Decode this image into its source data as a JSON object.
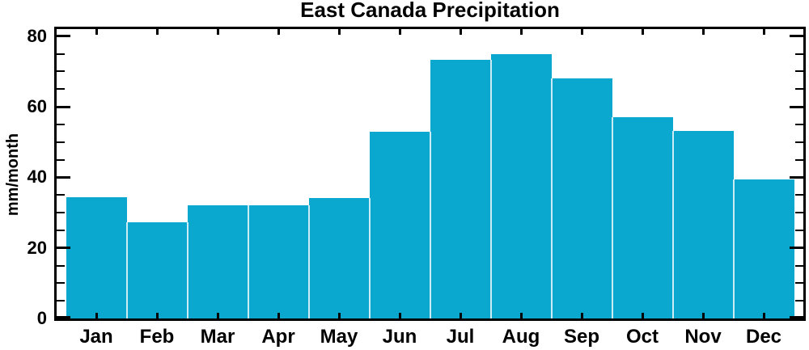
{
  "chart_data": {
    "type": "bar",
    "title": "East Canada Precipitation",
    "xlabel": "",
    "ylabel": "mm/month",
    "categories": [
      "Jan",
      "Feb",
      "Mar",
      "Apr",
      "May",
      "Jun",
      "Jul",
      "Aug",
      "Sep",
      "Oct",
      "Nov",
      "Dec"
    ],
    "values": [
      34.4,
      27.2,
      32.1,
      32.0,
      34.2,
      52.9,
      73.2,
      75.0,
      68.1,
      57.0,
      53.2,
      39.5
    ],
    "ylim": [
      0,
      82
    ],
    "yticks": [
      0,
      20,
      40,
      60,
      80
    ],
    "y_minor_step": 5,
    "grid": false,
    "legend": "none",
    "tick_style": "inward-box",
    "colors": {
      "bar": "#0AA8CE",
      "bar_separator": "#CDEBF5",
      "axis": "#000000",
      "text": "#000000",
      "background": "#FFFFFF"
    }
  }
}
